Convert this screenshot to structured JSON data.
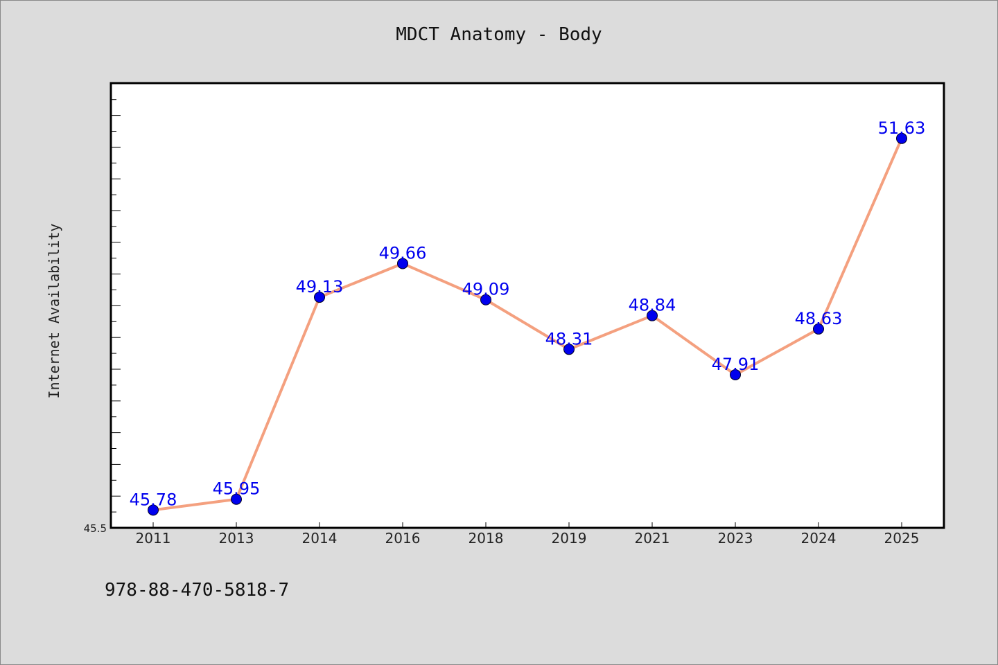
{
  "title": "MDCT Anatomy - Body",
  "footer_text": "978-88-470-5818-7",
  "colors": {
    "background": "#dcdcdc",
    "plot_background": "#ffffff",
    "line": "#f4a07f",
    "marker": "#0000ee",
    "data_label": "#0000ee"
  },
  "chart_data": {
    "type": "line",
    "title": "MDCT Anatomy - Body",
    "xlabel": "",
    "ylabel": "Internet Availability",
    "categories": [
      "2011",
      "2013",
      "2014",
      "2016",
      "2018",
      "2019",
      "2021",
      "2023",
      "2024",
      "2025"
    ],
    "series": [
      {
        "values": [
          45.78,
          45.95,
          49.13,
          49.66,
          49.09,
          48.31,
          48.84,
          47.91,
          48.63,
          51.63
        ],
        "labels": [
          "45.78",
          "45.95",
          "49.13",
          "49.66",
          "49.09",
          "48.31",
          "48.84",
          "47.91",
          "48.63",
          "51.63"
        ]
      }
    ],
    "ylim": [
      45.5,
      52.5
    ],
    "y_tick_labels": [
      "45.5"
    ],
    "grid": false,
    "legend": "none"
  }
}
